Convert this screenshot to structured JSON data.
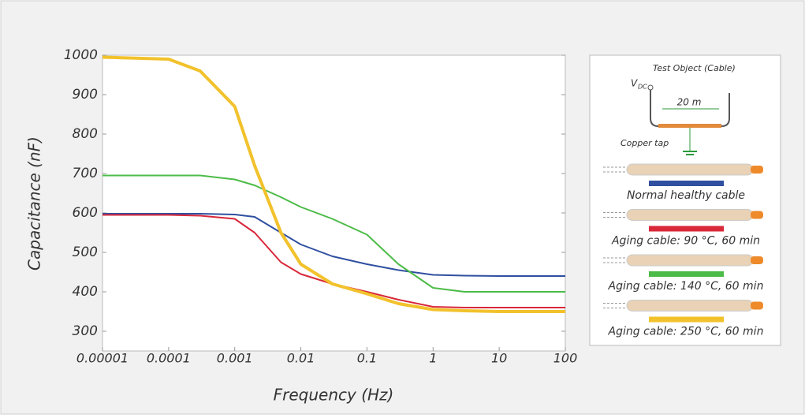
{
  "chart_data": {
    "type": "line",
    "x_label": "Frequency (Hz)",
    "y_label": "Capacitance (nF)",
    "x": [
      1e-05,
      0.0001,
      0.0003,
      0.001,
      0.002,
      0.005,
      0.01,
      0.03,
      0.1,
      0.3,
      1,
      3,
      10,
      100
    ],
    "xlim": [
      1e-05,
      100
    ],
    "xticks": [
      1e-05,
      0.0001,
      0.001,
      0.01,
      0.1,
      1,
      10,
      100
    ],
    "x_log": true,
    "ylim": [
      250,
      1000
    ],
    "yticks": [
      300,
      400,
      500,
      600,
      700,
      800,
      900,
      1000
    ],
    "grid": false,
    "series": [
      {
        "name": "Normal healthy cable",
        "color": "#2f4fa0",
        "values": [
          598,
          598,
          598,
          596,
          590,
          550,
          520,
          490,
          470,
          455,
          443,
          441,
          440,
          440
        ]
      },
      {
        "name": "Aging cable: 90 °C, 60 min",
        "color": "#d8283a",
        "values": [
          595,
          595,
          593,
          585,
          550,
          475,
          445,
          420,
          400,
          380,
          362,
          360,
          360,
          360
        ]
      },
      {
        "name": "Aging cable: 140 °C, 60 min",
        "color": "#4cbb47",
        "values": [
          695,
          695,
          695,
          685,
          670,
          640,
          615,
          585,
          545,
          470,
          410,
          400,
          400,
          400
        ]
      },
      {
        "name": "Aging cable: 250 °C, 60 min",
        "color": "#f2c22c",
        "values": [
          995,
          990,
          960,
          870,
          720,
          550,
          470,
          420,
          395,
          370,
          355,
          352,
          350,
          350
        ]
      }
    ],
    "diagram": {
      "title": "Test Object (Cable)",
      "source": "V",
      "source_sub": "DC",
      "length": "20 m",
      "ground": "Copper tap"
    }
  }
}
